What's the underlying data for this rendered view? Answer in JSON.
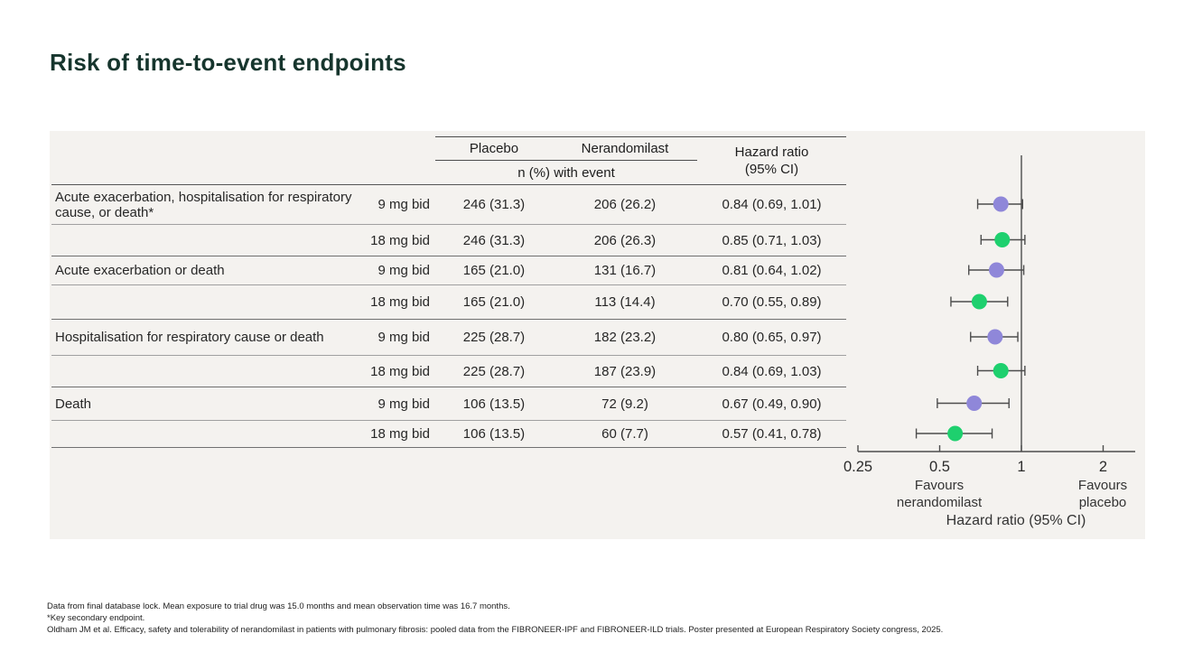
{
  "title": "Risk of time-to-event endpoints",
  "table": {
    "header": {
      "placebo": "Placebo",
      "nerandomilast": "Nerandomilast",
      "event_sub": "n (%) with event",
      "hazard_line1": "Hazard ratio",
      "hazard_line2": "(95% CI)"
    },
    "rows": [
      {
        "endpoint": "Acute exacerbation, hospitalisation for respiratory cause, or death*",
        "dose": "9 mg bid",
        "placebo": "246 (31.3)",
        "nerandomilast": "206 (26.2)",
        "hr_text": "0.84 (0.69, 1.01)"
      },
      {
        "endpoint": "",
        "dose": "18 mg bid",
        "placebo": "246 (31.3)",
        "nerandomilast": "206 (26.3)",
        "hr_text": "0.85 (0.71, 1.03)"
      },
      {
        "endpoint": "Acute exacerbation or death",
        "dose": "9 mg bid",
        "placebo": "165 (21.0)",
        "nerandomilast": "131 (16.7)",
        "hr_text": "0.81 (0.64, 1.02)"
      },
      {
        "endpoint": "",
        "dose": "18 mg bid",
        "placebo": "165 (21.0)",
        "nerandomilast": "113 (14.4)",
        "hr_text": "0.70 (0.55, 0.89)"
      },
      {
        "endpoint": "Hospitalisation for respiratory cause or death",
        "dose": "9 mg bid",
        "placebo": "225 (28.7)",
        "nerandomilast": "182 (23.2)",
        "hr_text": "0.80 (0.65, 0.97)"
      },
      {
        "endpoint": "",
        "dose": "18 mg bid",
        "placebo": "225 (28.7)",
        "nerandomilast": "187 (23.9)",
        "hr_text": "0.84 (0.69, 1.03)"
      },
      {
        "endpoint": "Death",
        "dose": "9 mg bid",
        "placebo": "106 (13.5)",
        "nerandomilast": "72 (9.2)",
        "hr_text": "0.67 (0.49, 0.90)"
      },
      {
        "endpoint": "",
        "dose": "18 mg bid",
        "placebo": "106 (13.5)",
        "nerandomilast": "60 (7.7)",
        "hr_text": "0.57 (0.41, 0.78)"
      }
    ]
  },
  "chart_data": {
    "type": "scatter",
    "subtype": "forest-plot",
    "x_scale": "log2",
    "x_tick_values": [
      0.25,
      0.5,
      1,
      2
    ],
    "x_tick_labels": [
      "0.25",
      "0.5",
      "1",
      "2"
    ],
    "x_range": [
      0.25,
      2.83
    ],
    "reference_line": 1,
    "xlabel": "Hazard ratio (95% CI)",
    "favours_left": [
      "Favours",
      "nerandomilast"
    ],
    "favours_right": [
      "Favours",
      "placebo"
    ],
    "series": [
      {
        "name": "9 mg bid",
        "color": "#8f87d9"
      },
      {
        "name": "18 mg bid",
        "color": "#1ed06e"
      }
    ],
    "points": [
      {
        "row": 0,
        "series": 0,
        "hr": 0.84,
        "ci_low": 0.69,
        "ci_high": 1.01
      },
      {
        "row": 1,
        "series": 1,
        "hr": 0.85,
        "ci_low": 0.71,
        "ci_high": 1.03
      },
      {
        "row": 2,
        "series": 0,
        "hr": 0.81,
        "ci_low": 0.64,
        "ci_high": 1.02
      },
      {
        "row": 3,
        "series": 1,
        "hr": 0.7,
        "ci_low": 0.55,
        "ci_high": 0.89
      },
      {
        "row": 4,
        "series": 0,
        "hr": 0.8,
        "ci_low": 0.65,
        "ci_high": 0.97
      },
      {
        "row": 5,
        "series": 1,
        "hr": 0.84,
        "ci_low": 0.69,
        "ci_high": 1.03
      },
      {
        "row": 6,
        "series": 0,
        "hr": 0.67,
        "ci_low": 0.49,
        "ci_high": 0.9
      },
      {
        "row": 7,
        "series": 1,
        "hr": 0.57,
        "ci_low": 0.41,
        "ci_high": 0.78
      }
    ]
  },
  "footnotes": [
    "Data from final database lock. Mean exposure to trial drug was 15.0 months and mean observation time was 16.7 months.",
    "*Key secondary endpoint.",
    "Oldham JM et al. Efficacy, safety and tolerability of nerandomilast in patients with pulmonary fibrosis: pooled data from the FIBRONEER-IPF and FIBRONEER-ILD trials. Poster presented at European Respiratory Society congress, 2025."
  ],
  "colors": {
    "title": "#16352d",
    "panel_bg": "#f4f2ef",
    "axis": "#4d4d4d",
    "dot_9mg": "#8f87d9",
    "dot_18mg": "#1ed06e"
  }
}
